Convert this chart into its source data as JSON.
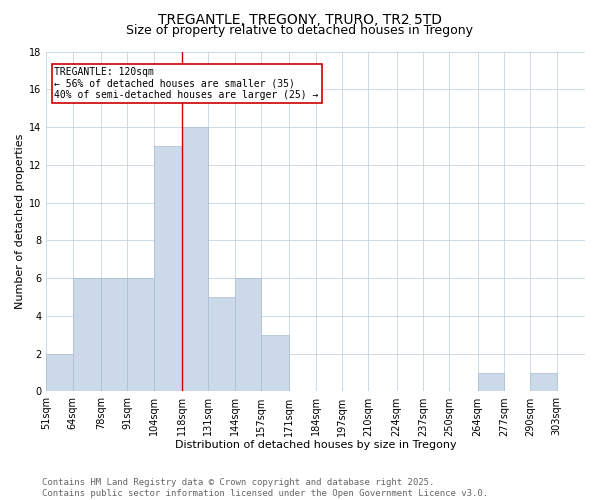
{
  "title_line1": "TREGANTLE, TREGONY, TRURO, TR2 5TD",
  "title_line2": "Size of property relative to detached houses in Tregony",
  "xlabel": "Distribution of detached houses by size in Tregony",
  "ylabel": "Number of detached properties",
  "bar_color": "#ccd9e8",
  "bar_edgecolor": "#aabdd4",
  "background_color": "#ffffff",
  "grid_color": "#c5d3e0",
  "annotation_text": "TREGANTLE: 120sqm\n← 56% of detached houses are smaller (35)\n40% of semi-detached houses are larger (25) →",
  "annotation_box_color": "#ffffff",
  "annotation_box_edgecolor": "#cc0000",
  "vline_x": 118,
  "vline_color": "#cc0000",
  "bins": [
    51,
    64,
    78,
    91,
    104,
    118,
    131,
    144,
    157,
    171,
    184,
    197,
    210,
    224,
    237,
    250,
    264,
    277,
    290,
    303,
    317
  ],
  "counts": [
    2,
    6,
    6,
    6,
    13,
    14,
    5,
    6,
    3,
    0,
    0,
    0,
    0,
    0,
    0,
    0,
    1,
    0,
    1,
    0
  ],
  "ylim": [
    0,
    18
  ],
  "yticks": [
    0,
    2,
    4,
    6,
    8,
    10,
    12,
    14,
    16,
    18
  ],
  "footer_text": "Contains HM Land Registry data © Crown copyright and database right 2025.\nContains public sector information licensed under the Open Government Licence v3.0.",
  "title_fontsize": 10,
  "subtitle_fontsize": 9,
  "axis_label_fontsize": 8,
  "tick_fontsize": 7,
  "footer_fontsize": 6.5
}
